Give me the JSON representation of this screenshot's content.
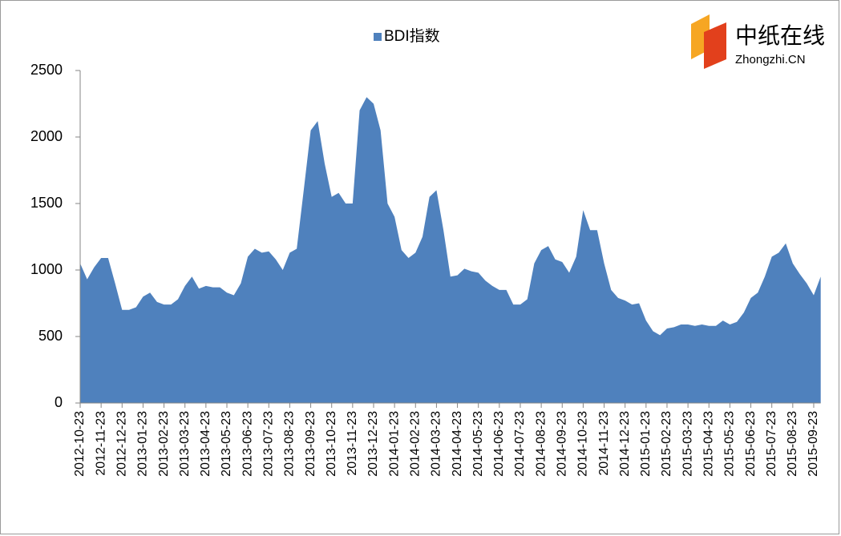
{
  "chart_data": {
    "type": "area",
    "logo": {
      "name": "中纸在线",
      "domain": "Zhongzhi.CN"
    },
    "categories": [
      "2012-10-23",
      null,
      null,
      "2012-11-23",
      null,
      null,
      "2012-12-23",
      null,
      null,
      "2013-01-23",
      null,
      null,
      "2013-02-23",
      null,
      null,
      "2013-03-23",
      null,
      null,
      "2013-04-23",
      null,
      null,
      "2013-05-23",
      null,
      null,
      "2013-06-23",
      null,
      null,
      "2013-07-23",
      null,
      null,
      "2013-08-23",
      null,
      null,
      "2013-09-23",
      null,
      null,
      "2013-10-23",
      null,
      null,
      "2013-11-23",
      null,
      null,
      "2013-12-23",
      null,
      null,
      "2014-01-23",
      null,
      null,
      "2014-02-23",
      null,
      null,
      "2014-03-23",
      null,
      null,
      "2014-04-23",
      null,
      null,
      "2014-05-23",
      null,
      null,
      "2014-06-23",
      null,
      null,
      "2014-07-23",
      null,
      null,
      "2014-08-23",
      null,
      null,
      "2014-09-23",
      null,
      null,
      "2014-10-23",
      null,
      null,
      "2014-11-23",
      null,
      null,
      "2014-12-23",
      null,
      null,
      "2015-01-23",
      null,
      null,
      "2015-02-23",
      null,
      null,
      "2015-03-23",
      null,
      null,
      "2015-04-23",
      null,
      null,
      "2015-05-23",
      null,
      null,
      "2015-06-23",
      null,
      null,
      "2015-07-23",
      null,
      null,
      "2015-08-23",
      null,
      null,
      "2015-09-23",
      null
    ],
    "series": [
      {
        "name": "BDI指数",
        "color": "#4f81bd",
        "values": [
          1050,
          930,
          1020,
          1090,
          1090,
          900,
          700,
          700,
          720,
          800,
          830,
          760,
          740,
          740,
          780,
          880,
          950,
          860,
          880,
          870,
          870,
          830,
          810,
          900,
          1100,
          1160,
          1130,
          1140,
          1080,
          1000,
          1130,
          1160,
          1600,
          2050,
          2120,
          1800,
          1550,
          1580,
          1500,
          1500,
          2200,
          2300,
          2250,
          2050,
          1500,
          1400,
          1150,
          1090,
          1130,
          1250,
          1550,
          1600,
          1300,
          950,
          960,
          1010,
          990,
          980,
          920,
          880,
          850,
          850,
          740,
          740,
          780,
          1050,
          1150,
          1180,
          1080,
          1060,
          980,
          1100,
          1450,
          1300,
          1300,
          1050,
          850,
          790,
          770,
          740,
          750,
          620,
          540,
          510,
          560,
          570,
          590,
          590,
          580,
          590,
          580,
          580,
          620,
          590,
          610,
          680,
          790,
          830,
          950,
          1100,
          1130,
          1200,
          1050,
          970,
          900,
          810,
          950
        ]
      }
    ],
    "ylim": [
      0,
      2500
    ],
    "yticks": [
      0,
      500,
      1000,
      1500,
      2000,
      2500
    ],
    "legend": "top"
  }
}
